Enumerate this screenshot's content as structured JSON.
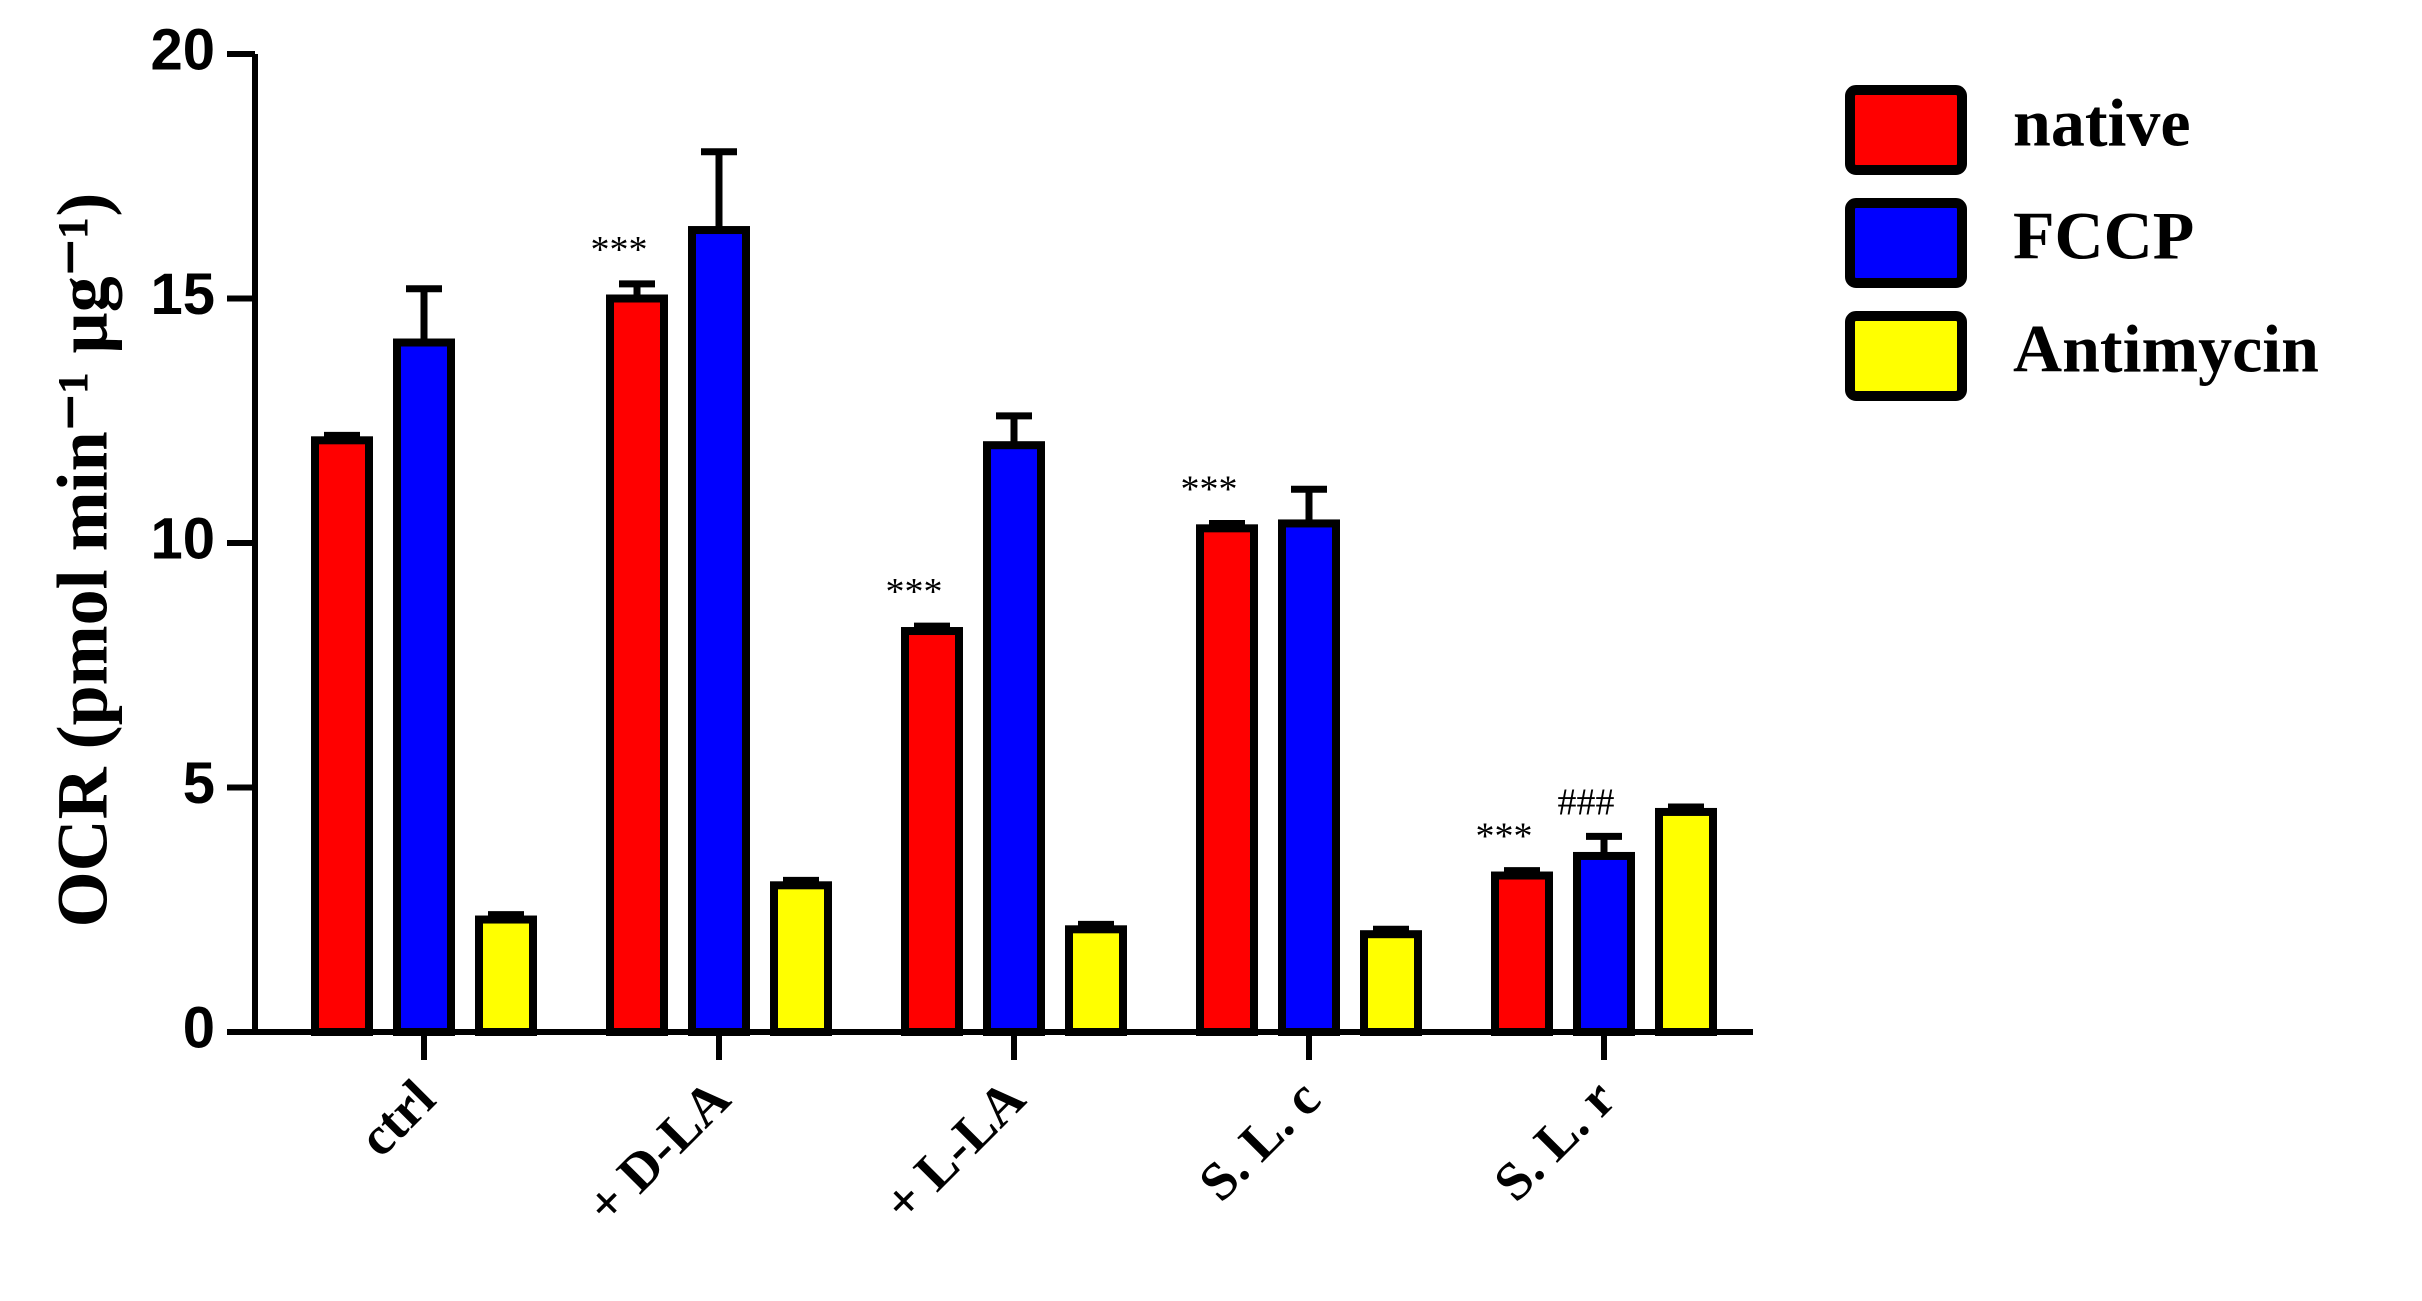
{
  "chart_data": {
    "type": "bar",
    "y_label": "OCR (pmol min⁻¹ µg⁻¹)",
    "categories": [
      "ctrl",
      "+ D-LA",
      "+ L-LA",
      "S. L. c",
      "S. L. r"
    ],
    "series": [
      {
        "name": "native",
        "color": "#ff0000",
        "values": [
          12.1,
          15.0,
          8.2,
          10.3,
          3.2
        ],
        "errors": [
          0.1,
          0.3,
          0.1,
          0.1,
          0.1
        ],
        "annotations": [
          null,
          "***",
          "***",
          "***",
          "***"
        ]
      },
      {
        "name": "FCCP",
        "color": "#0000ff",
        "values": [
          14.1,
          16.4,
          12.0,
          10.4,
          3.6
        ],
        "errors": [
          1.1,
          1.6,
          0.6,
          0.7,
          0.4
        ],
        "annotations": [
          null,
          null,
          null,
          null,
          "###"
        ]
      },
      {
        "name": "Antimycin",
        "color": "#ffff00",
        "values": [
          2.3,
          3.0,
          2.1,
          2.0,
          4.5
        ],
        "errors": [
          0.1,
          0.1,
          0.1,
          0.1,
          0.1
        ],
        "annotations": [
          null,
          null,
          null,
          null,
          null
        ]
      }
    ],
    "ylim": [
      0,
      20
    ],
    "yticks": [
      0,
      5,
      10,
      15,
      20
    ],
    "grid": false
  }
}
